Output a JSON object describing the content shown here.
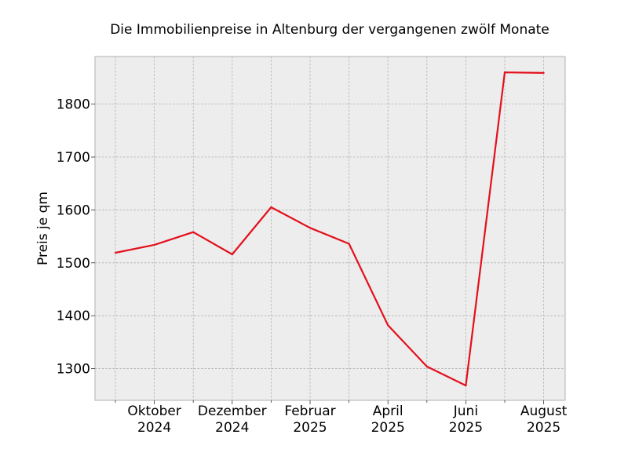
{
  "chart_data": {
    "type": "line",
    "title": "Die Immobilienpreise in Altenburg der vergangenen zwölf Monate",
    "xlabel": "",
    "ylabel": "Preis je qm",
    "x": [
      "2024-09",
      "2024-10",
      "2024-11",
      "2024-12",
      "2025-01",
      "2025-02",
      "2025-03",
      "2025-04",
      "2025-05",
      "2025-06",
      "2025-07",
      "2025-08"
    ],
    "series": [
      {
        "values": [
          1519,
          1534,
          1558,
          1516,
          1605,
          1566,
          1536,
          1382,
          1304,
          1268,
          1860,
          1859
        ]
      }
    ],
    "xticks": [
      {
        "x": "2024-10",
        "line1": "Oktober",
        "line2": "2024"
      },
      {
        "x": "2024-12",
        "line1": "Dezember",
        "line2": "2024"
      },
      {
        "x": "2025-02",
        "line1": "Februar",
        "line2": "2025"
      },
      {
        "x": "2025-04",
        "line1": "April",
        "line2": "2025"
      },
      {
        "x": "2025-06",
        "line1": "Juni",
        "line2": "2025"
      },
      {
        "x": "2025-08",
        "line1": "August",
        "line2": "2025"
      }
    ],
    "yticks": [
      1300,
      1400,
      1500,
      1600,
      1700,
      1800
    ],
    "ylim": [
      1240,
      1890
    ],
    "grid": true,
    "colors": {
      "line": "#e3101c",
      "background": "#ededed",
      "grid": "#b0b0b0"
    }
  }
}
